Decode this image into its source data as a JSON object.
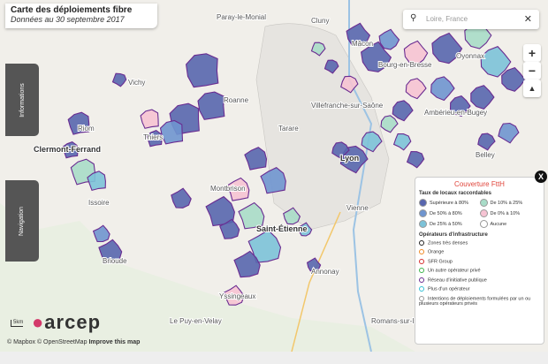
{
  "header": {
    "title": "Carte des déploiements fibre",
    "subtitle": "Données au 30 septembre 2017"
  },
  "search": {
    "query": "Loire, France"
  },
  "tabs": [
    "Informations",
    "Navigation"
  ],
  "places": [
    "Paray-le-Monial",
    "Cluny",
    "Mâcon",
    "Bourg-en-Bresse",
    "Oyonnax",
    "Vichy",
    "Roanne",
    "Villefranche-sur-Saône",
    "Thiers",
    "Clermont-Ferrand",
    "Riom",
    "Tarare",
    "Lyon",
    "Ambérieu-en-Bugey",
    "Belley",
    "Montbrison",
    "Saint-Étienne",
    "Vienne",
    "Issoire",
    "Brioude",
    "Annonay",
    "Yssingeaux",
    "Le Puy-en-Velay",
    "Romans-sur-Isère"
  ],
  "legend": {
    "title": "Couverture FttH",
    "rate_heading": "Taux de locaux raccordables",
    "rates": [
      {
        "label": "Supérieure à 80%",
        "color": "#5866ae"
      },
      {
        "label": "De 10% à 25%",
        "color": "#a8dcc8"
      },
      {
        "label": "De 50% à 80%",
        "color": "#6f95cf"
      },
      {
        "label": "De 0% à 10%",
        "color": "#f6c3d3"
      },
      {
        "label": "De 25% à 50%",
        "color": "#7cc2d8"
      },
      {
        "label": "Aucune",
        "color": "#ffffff"
      }
    ],
    "operator_heading": "Opérateurs d'infrastructure",
    "operators": [
      {
        "label": "Zones très denses",
        "color": "#222222"
      },
      {
        "label": "Orange",
        "color": "#f08a24"
      },
      {
        "label": "SFR Group",
        "color": "#d62e2e"
      },
      {
        "label": "Un autre opérateur privé",
        "color": "#3cb44b"
      },
      {
        "label": "Réseau d'initiative publique",
        "color": "#6a2c91"
      },
      {
        "label": "Plus d'un opérateur",
        "color": "#33c1d6"
      },
      {
        "label": "Intentions de déploiements formulées par un ou plusieurs opérateurs privés",
        "color": "#999999"
      }
    ]
  },
  "logo": "arcep",
  "footer": {
    "attribution": "© Mapbox © OpenStreetMap",
    "link": "Improve this map"
  }
}
